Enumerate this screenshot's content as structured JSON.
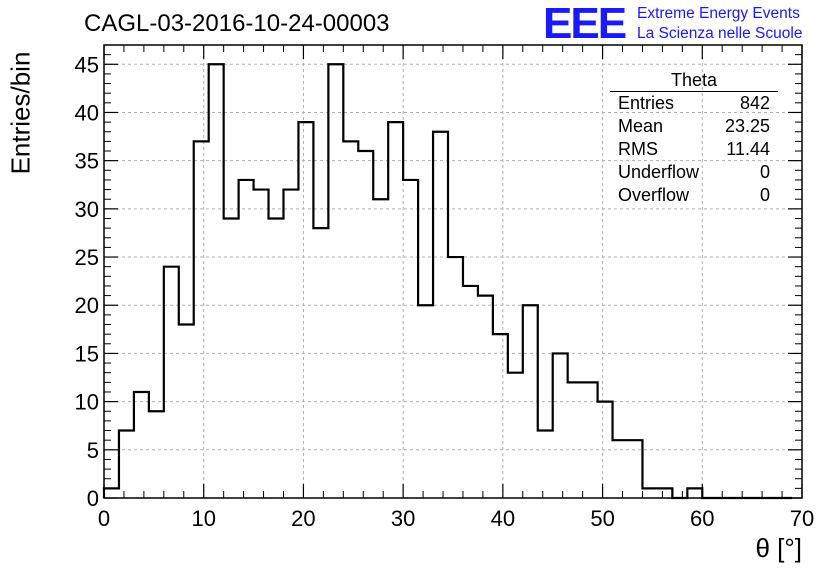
{
  "header": {
    "title": "CAGL-03-2016-10-24-00003",
    "logo_mark": "EEE",
    "logo_line1": "Extreme Energy Events",
    "logo_line2": "La Scienza nelle Scuole"
  },
  "stats_box": {
    "title": "Theta",
    "rows": [
      {
        "label": "Entries",
        "value": "842"
      },
      {
        "label": "Mean",
        "value": "23.25"
      },
      {
        "label": "RMS",
        "value": "11.44"
      },
      {
        "label": "Underflow",
        "value": "0"
      },
      {
        "label": "Overflow",
        "value": "0"
      }
    ]
  },
  "chart_data": {
    "type": "histogram",
    "xlabel": "θ [°]",
    "ylabel": "Entries/bin",
    "xlim": [
      0,
      70
    ],
    "ylim": [
      0,
      47
    ],
    "grid": true,
    "bin_width": 1.5,
    "bin_start": 0,
    "x_ticks": [
      0,
      10,
      20,
      30,
      40,
      50,
      60,
      70
    ],
    "y_ticks": [
      0,
      5,
      10,
      15,
      20,
      25,
      30,
      35,
      40,
      45
    ],
    "values": [
      1,
      7,
      11,
      9,
      24,
      18,
      37,
      45,
      29,
      33,
      32,
      29,
      32,
      39,
      28,
      45,
      37,
      36,
      31,
      39,
      33,
      20,
      38,
      25,
      22,
      21,
      17,
      13,
      20,
      7,
      15,
      12,
      12,
      10,
      6,
      6,
      1,
      1,
      0,
      1,
      0,
      0,
      0,
      0,
      0,
      0
    ]
  },
  "colors": {
    "line": "#000000",
    "grid": "#b0b0b0",
    "logo": "#1a1aff"
  }
}
